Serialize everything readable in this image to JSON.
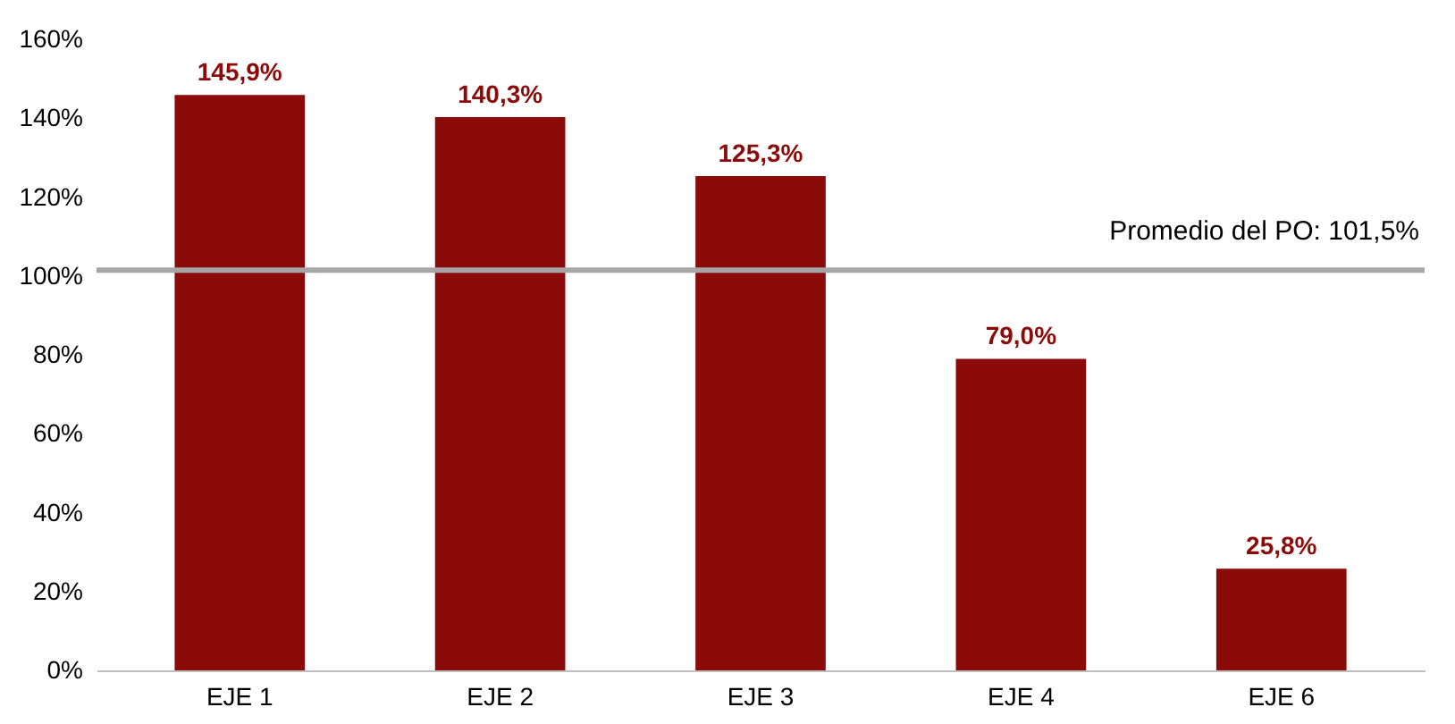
{
  "chart_data": {
    "type": "bar",
    "categories": [
      "EJE 1",
      "EJE 2",
      "EJE 3",
      "EJE 4",
      "EJE 6"
    ],
    "values": [
      145.9,
      140.3,
      125.3,
      79.0,
      25.8
    ],
    "value_labels": [
      "145,9%",
      "140,3%",
      "125,3%",
      "79,0%",
      "25,8%"
    ],
    "color": "#8b0a0a",
    "ylim": [
      0,
      160
    ],
    "yticks": [
      {
        "value": 0,
        "label": "0%"
      },
      {
        "value": 20,
        "label": "20%"
      },
      {
        "value": 40,
        "label": "40%"
      },
      {
        "value": 60,
        "label": "60%"
      },
      {
        "value": 80,
        "label": "80%"
      },
      {
        "value": 100,
        "label": "100%"
      },
      {
        "value": 120,
        "label": "120%"
      },
      {
        "value": 140,
        "label": "140%"
      },
      {
        "value": 160,
        "label": "160%"
      }
    ],
    "ref_lines": [
      {
        "axis": "y",
        "value": 101.5,
        "label": "Promedio del PO: 101,5%",
        "color": "#a6a6a6"
      }
    ],
    "grid": false
  }
}
